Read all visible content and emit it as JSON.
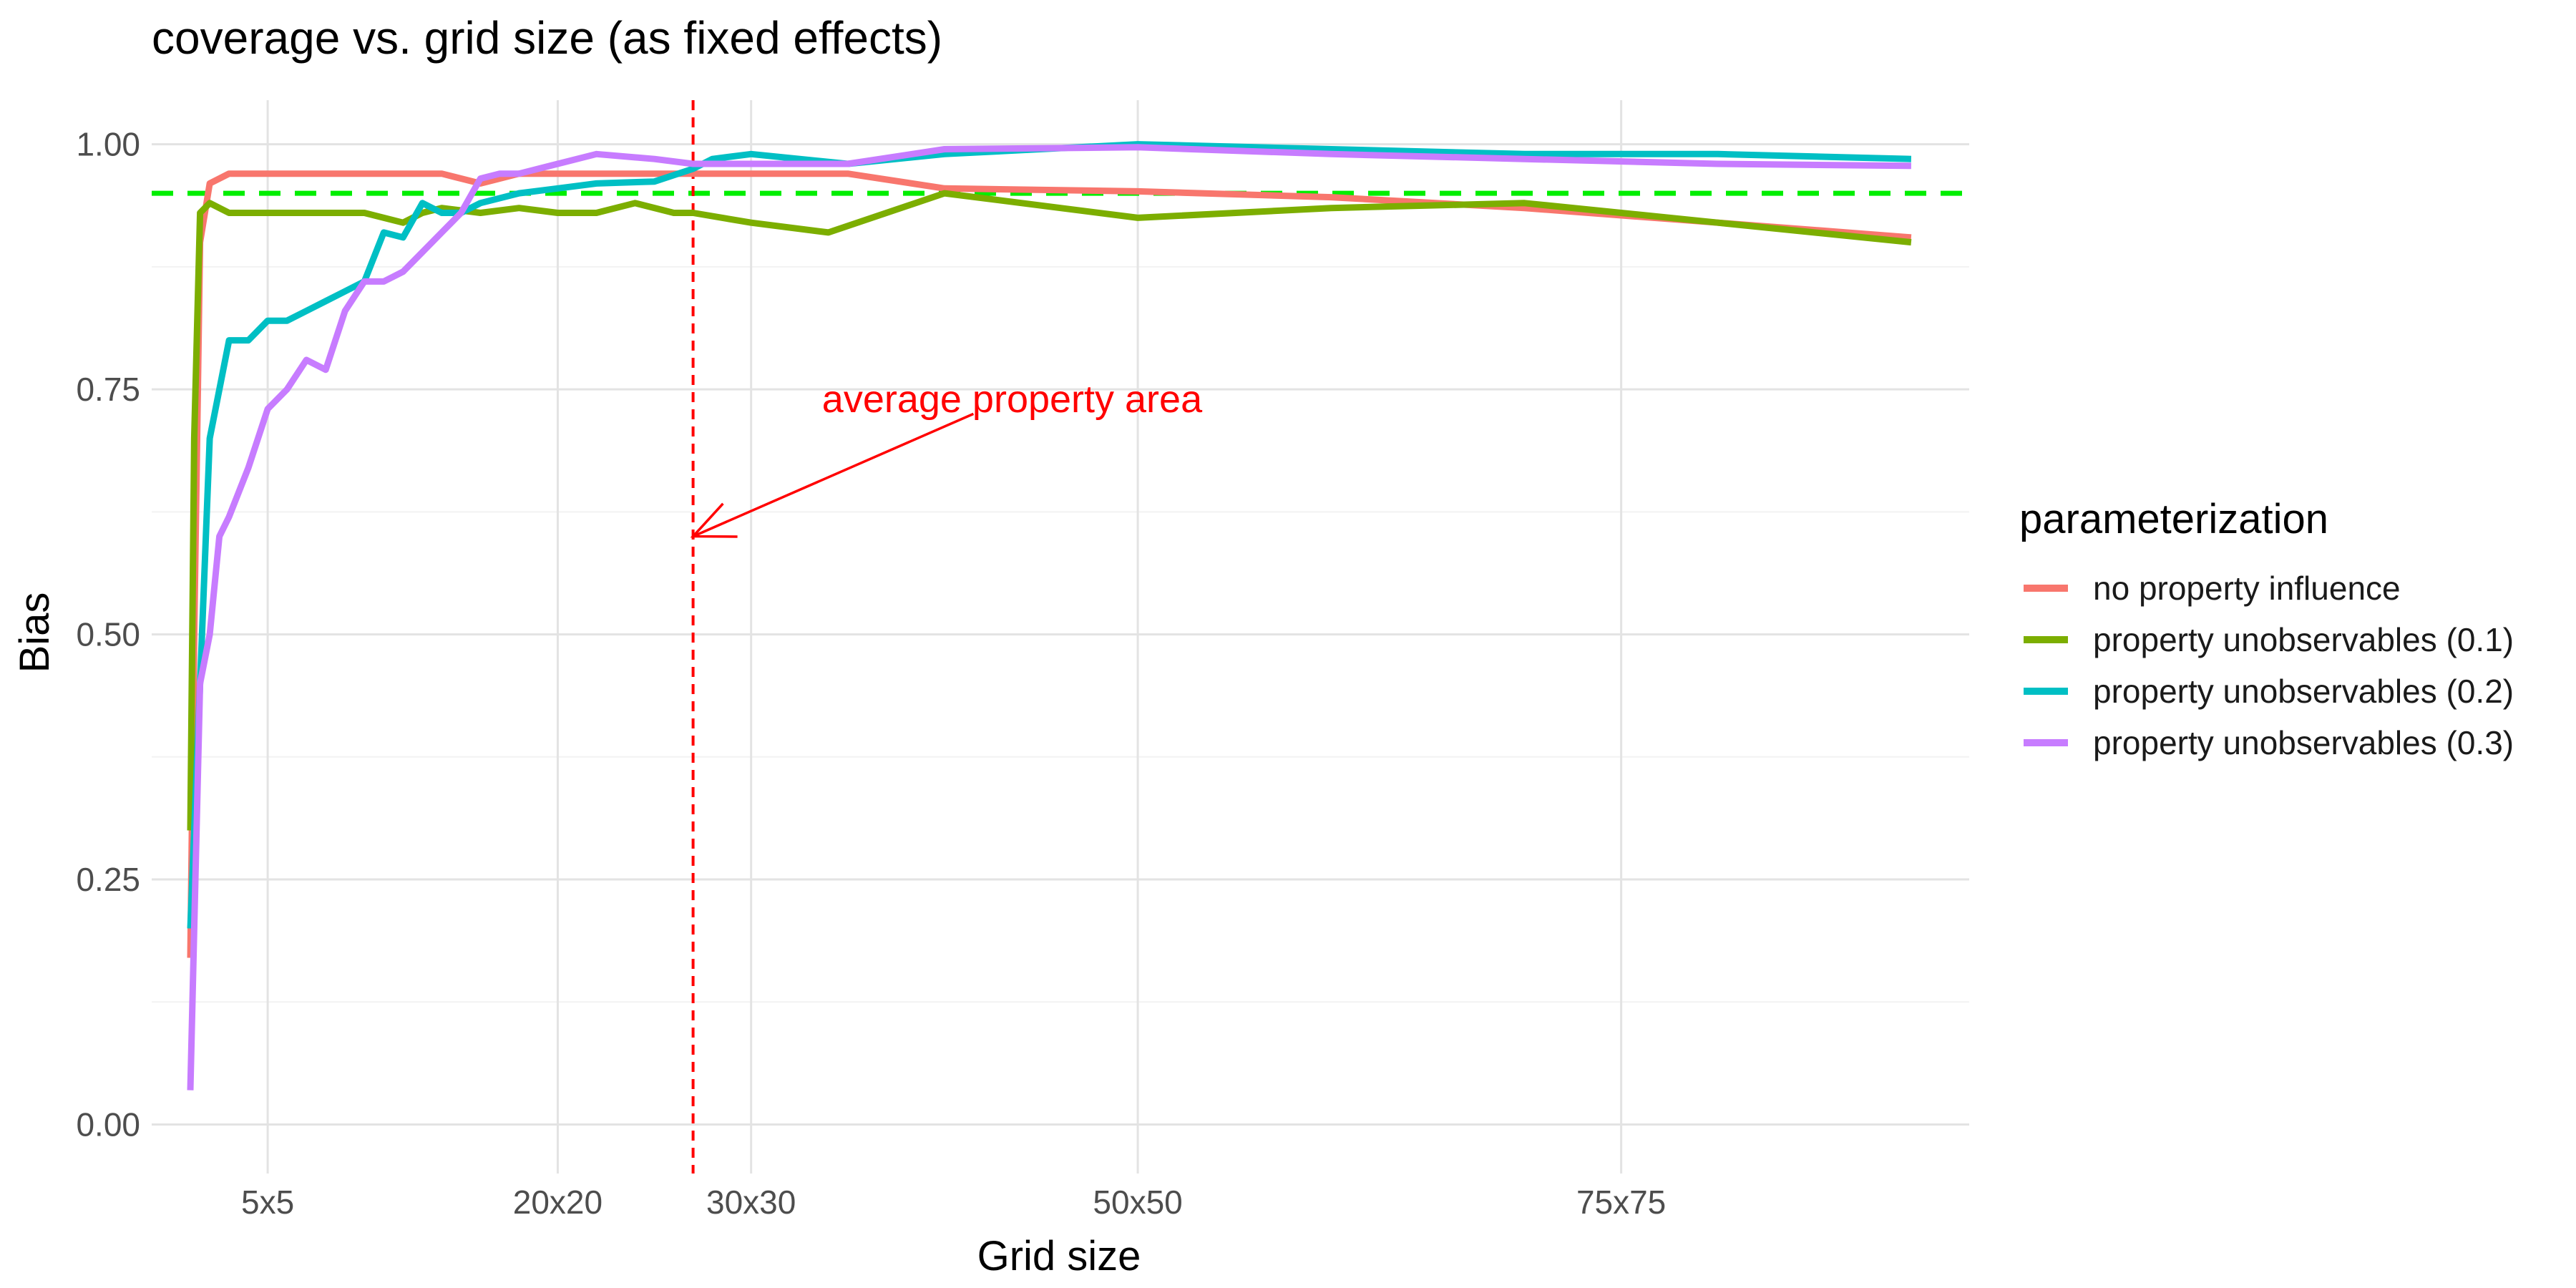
{
  "chart_data": {
    "type": "line",
    "title": "coverage vs. grid size (as fixed effects)",
    "xlabel": "Grid size",
    "ylabel": "Bias",
    "xlim": [
      -1,
      93
    ],
    "ylim": [
      0,
      1.03
    ],
    "x_ticks": [
      {
        "value": 5,
        "label": "5x5"
      },
      {
        "value": 20,
        "label": "20x20"
      },
      {
        "value": 30,
        "label": "30x30"
      },
      {
        "value": 50,
        "label": "50x50"
      },
      {
        "value": 75,
        "label": "75x75"
      }
    ],
    "y_ticks": [
      {
        "value": 0,
        "label": "0.00"
      },
      {
        "value": 0.25,
        "label": "0.25"
      },
      {
        "value": 0.5,
        "label": "0.50"
      },
      {
        "value": 0.75,
        "label": "0.75"
      },
      {
        "value": 1.0,
        "label": "1.00"
      }
    ],
    "grid": true,
    "legend": {
      "title": "parameterization",
      "position": "right"
    },
    "reference_lines": [
      {
        "orientation": "horizontal",
        "value": 0.95,
        "style": "dashed",
        "color": "#00ee00"
      },
      {
        "orientation": "vertical",
        "value": 27,
        "style": "dashed",
        "color": "#ff0000"
      }
    ],
    "annotation": {
      "text": "average property area",
      "color": "#ff0000",
      "text_x": 43.5,
      "text_y": 0.74,
      "arrow_from_x": 41.5,
      "arrow_from_y": 0.725,
      "arrow_to_x": 27,
      "arrow_to_y": 0.6
    },
    "series": [
      {
        "name": "no property influence",
        "color": "#F8766D",
        "x": [
          1,
          1.2,
          1.5,
          2,
          3,
          5,
          8,
          10,
          12,
          14,
          16,
          18,
          20,
          22,
          24,
          25,
          27,
          30,
          35,
          40,
          50,
          60,
          70,
          80,
          90
        ],
        "y": [
          0.17,
          0.5,
          0.9,
          0.96,
          0.97,
          0.97,
          0.97,
          0.97,
          0.97,
          0.97,
          0.96,
          0.97,
          0.97,
          0.97,
          0.97,
          0.97,
          0.97,
          0.97,
          0.97,
          0.955,
          0.952,
          0.946,
          0.935,
          0.92,
          0.905
        ]
      },
      {
        "name": "property unobservables (0.1)",
        "color": "#7CAE00",
        "x": [
          1,
          1.2,
          1.5,
          2,
          3,
          5,
          8,
          10,
          12,
          13,
          14,
          16,
          18,
          20,
          22,
          24,
          26,
          27,
          30,
          34,
          40,
          50,
          60,
          70,
          80,
          90
        ],
        "y": [
          0.3,
          0.7,
          0.93,
          0.94,
          0.93,
          0.93,
          0.93,
          0.93,
          0.92,
          0.93,
          0.935,
          0.93,
          0.935,
          0.93,
          0.93,
          0.94,
          0.93,
          0.93,
          0.92,
          0.91,
          0.95,
          0.925,
          0.935,
          0.94,
          0.92,
          0.9
        ]
      },
      {
        "name": "property unobservables (0.2)",
        "color": "#00BFC4",
        "x": [
          1,
          1.5,
          2,
          2.5,
          3,
          4,
          5,
          6,
          7,
          8,
          9,
          10,
          11,
          12,
          13,
          14,
          15,
          16,
          18,
          20,
          22,
          25,
          27,
          28,
          30,
          35,
          40,
          50,
          60,
          70,
          80,
          90
        ],
        "y": [
          0.2,
          0.45,
          0.7,
          0.75,
          0.8,
          0.8,
          0.82,
          0.82,
          0.83,
          0.84,
          0.85,
          0.86,
          0.91,
          0.905,
          0.94,
          0.93,
          0.93,
          0.94,
          0.95,
          0.955,
          0.96,
          0.962,
          0.975,
          0.985,
          0.99,
          0.98,
          0.99,
          1.0,
          0.995,
          0.99,
          0.99,
          0.985
        ]
      },
      {
        "name": "property unobservables (0.3)",
        "color": "#C77CFF",
        "x": [
          1,
          1.5,
          2,
          2.5,
          3,
          4,
          5,
          6,
          7,
          8,
          9,
          10,
          11,
          12,
          13,
          14,
          15,
          16,
          17,
          18,
          20,
          22,
          25,
          27,
          30,
          35,
          40,
          50,
          60,
          70,
          80,
          90
        ],
        "y": [
          0.035,
          0.45,
          0.5,
          0.6,
          0.62,
          0.67,
          0.73,
          0.75,
          0.78,
          0.77,
          0.83,
          0.86,
          0.86,
          0.87,
          0.89,
          0.91,
          0.93,
          0.965,
          0.97,
          0.97,
          0.98,
          0.99,
          0.985,
          0.98,
          0.98,
          0.98,
          0.995,
          0.997,
          0.99,
          0.985,
          0.98,
          0.978
        ]
      }
    ]
  }
}
